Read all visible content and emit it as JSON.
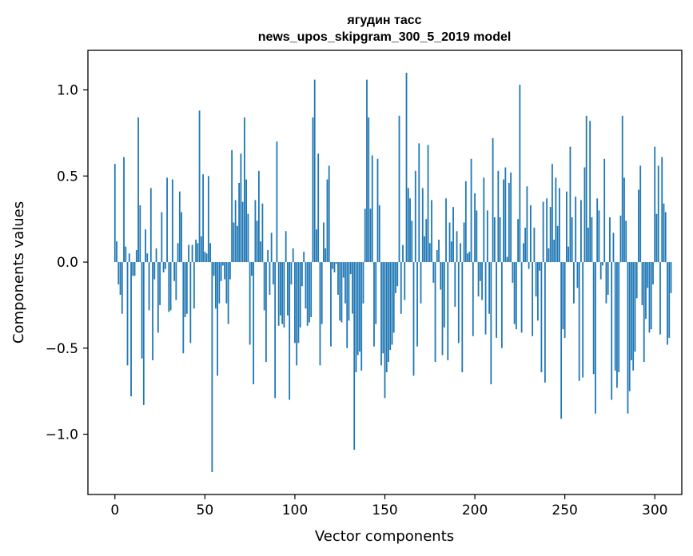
{
  "chart_data": {
    "type": "bar",
    "title": "ягудин тасс",
    "subtitle": "news_upos_skipgram_300_5_2019 model",
    "xlabel": "Vector components",
    "ylabel": "Components values",
    "xlim": [
      -15,
      315
    ],
    "ylim": [
      -1.35,
      1.23
    ],
    "xticks": [
      0,
      50,
      100,
      150,
      200,
      250,
      300
    ],
    "xtick_labels": [
      "0",
      "50",
      "100",
      "150",
      "200",
      "250",
      "300"
    ],
    "yticks": [
      -1.0,
      -0.5,
      0.0,
      0.5,
      1.0
    ],
    "ytick_labels": [
      "−1.0",
      "−0.5",
      "0.0",
      "0.5",
      "1.0"
    ],
    "grid": false,
    "bar_color": "#1f77b4",
    "series": [
      {
        "name": "components",
        "x_start": 0,
        "values": [
          0.57,
          0.12,
          -0.13,
          -0.19,
          -0.3,
          0.61,
          0.09,
          -0.6,
          0.05,
          -0.78,
          -0.08,
          -0.08,
          0.07,
          0.84,
          0.33,
          -0.56,
          -0.83,
          0.19,
          0.05,
          -0.28,
          0.43,
          -0.57,
          -0.1,
          0.08,
          -0.41,
          -0.25,
          0.29,
          -0.06,
          -0.04,
          0.49,
          -0.29,
          -0.28,
          0.48,
          -0.11,
          -0.22,
          0.11,
          0.41,
          0.29,
          -0.53,
          -0.32,
          -0.3,
          0.1,
          -0.47,
          0.1,
          -0.27,
          0.13,
          0.11,
          0.88,
          0.15,
          0.51,
          0.06,
          0.05,
          0.5,
          0.11,
          -1.22,
          -0.08,
          -0.27,
          -0.66,
          -0.24,
          -0.11,
          -0.02,
          -0.1,
          -0.24,
          -0.36,
          -0.1,
          0.65,
          0.23,
          0.36,
          0.21,
          0.46,
          0.63,
          0.35,
          0.84,
          0.48,
          0.28,
          -0.48,
          -0.08,
          -0.71,
          0.36,
          0.24,
          0.53,
          0.12,
          0.34,
          -0.28,
          -0.58,
          0.07,
          -0.19,
          0.17,
          -0.13,
          -0.79,
          0.7,
          -0.37,
          -0.31,
          -0.36,
          -0.38,
          0.18,
          -0.31,
          -0.8,
          -0.13,
          0.08,
          -0.47,
          -0.6,
          -0.47,
          -0.38,
          -0.14,
          0.06,
          -0.27,
          -0.37,
          -0.35,
          -0.32,
          0.84,
          1.06,
          0.19,
          0.63,
          -0.6,
          -0.36,
          0.23,
          0.08,
          0.48,
          0.56,
          -0.49,
          -0.04,
          -0.06,
          -0.01,
          -0.19,
          -0.34,
          -0.35,
          -0.09,
          -0.24,
          -0.5,
          -0.34,
          -0.07,
          -0.3,
          -1.09,
          -0.64,
          -0.54,
          -0.52,
          -0.63,
          -0.24,
          0.31,
          1.06,
          0.84,
          0.31,
          0.62,
          -0.49,
          -0.36,
          0.6,
          0.33,
          -0.6,
          -0.53,
          -0.79,
          -0.64,
          -0.58,
          -0.51,
          -0.48,
          -0.41,
          -0.18,
          -0.14,
          0.85,
          -0.3,
          0.1,
          -0.22,
          1.1,
          0.43,
          0.37,
          0.24,
          -0.66,
          0.53,
          -0.49,
          0.69,
          -0.24,
          0.43,
          0.15,
          0.25,
          0.68,
          0.11,
          0.36,
          -0.12,
          -0.58,
          0.07,
          0.13,
          -0.16,
          -0.54,
          -0.38,
          0.37,
          -0.57,
          0.23,
          0.12,
          0.32,
          -0.26,
          0.18,
          -0.47,
          0.11,
          -0.64,
          0.23,
          0.47,
          0.05,
          0.06,
          0.6,
          -0.43,
          0.4,
          0.3,
          -0.2,
          -0.11,
          -0.22,
          0.49,
          -0.42,
          0.3,
          -0.3,
          -0.71,
          0.72,
          0.26,
          -0.44,
          0.53,
          0.26,
          -0.5,
          0.48,
          0.55,
          0.03,
          0.46,
          0.52,
          -0.12,
          -0.36,
          -0.39,
          0.25,
          1.03,
          -0.41,
          0.11,
          0.2,
          0.44,
          -0.04,
          0.33,
          -0.43,
          0.2,
          -0.2,
          -0.34,
          -0.05,
          -0.64,
          0.35,
          -0.7,
          0.37,
          0.08,
          0.32,
          0.57,
          0.13,
          0.49,
          0.21,
          0.43,
          -0.91,
          -0.39,
          -0.44,
          0.41,
          0.09,
          0.67,
          0.26,
          -0.24,
          0.38,
          -0.15,
          -0.69,
          0.36,
          -0.67,
          0.55,
          0.85,
          0.2,
          0.82,
          0.26,
          -0.65,
          -0.88,
          0.37,
          0.3,
          -0.1,
          -0.02,
          0.6,
          -0.24,
          -0.19,
          0.26,
          -0.8,
          0.17,
          -0.63,
          -0.73,
          -0.64,
          0.27,
          0.85,
          0.49,
          0.24,
          -0.88,
          -0.75,
          -0.57,
          -0.63,
          -0.52,
          -0.21,
          0.42,
          0.56,
          -0.25,
          -0.58,
          -0.33,
          -0.15,
          -0.41,
          -0.39,
          -0.13,
          0.67,
          0.28,
          0.56,
          -0.42,
          0.61,
          0.34,
          0.29,
          -0.48,
          -0.44,
          -0.18
        ]
      }
    ]
  }
}
